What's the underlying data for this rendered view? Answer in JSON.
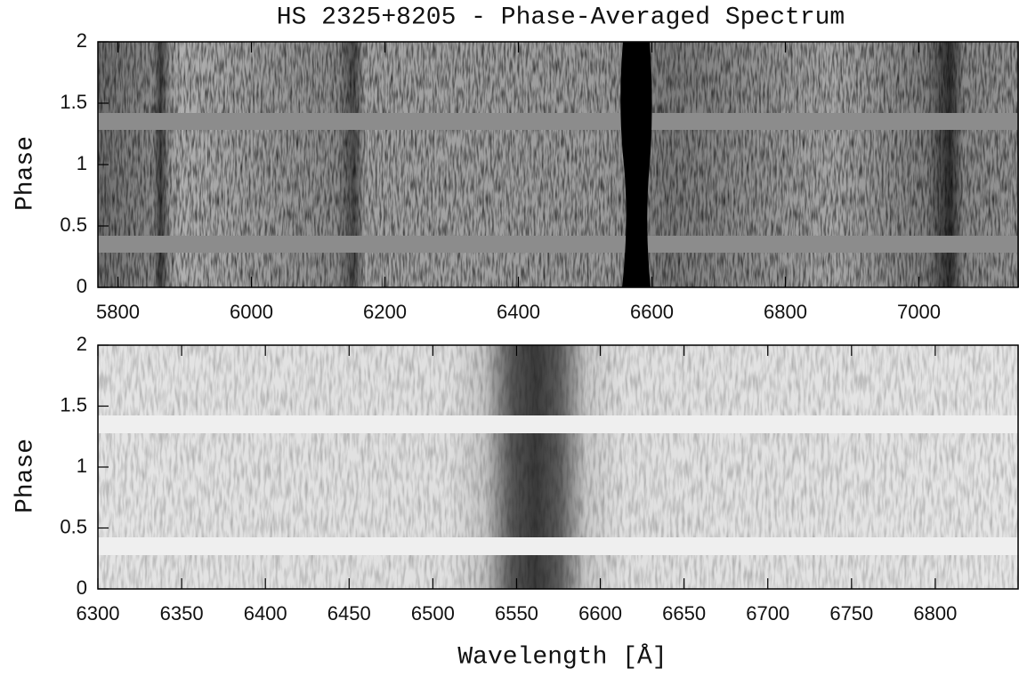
{
  "chart_data": [
    {
      "type": "image",
      "title": "HS 2325+8205 - Phase-Averaged Spectrum",
      "ylabel": "Phase",
      "xlim": [
        5770,
        7150
      ],
      "ylim": [
        0,
        2
      ],
      "xticks": [
        5800,
        6000,
        6200,
        6400,
        6600,
        6800,
        7000
      ],
      "yticks": [
        0,
        0.5,
        1,
        1.5,
        2
      ]
    },
    {
      "type": "image",
      "ylabel": "Phase",
      "xlabel": "Wavelength [Å]",
      "xlim": [
        6300,
        6850
      ],
      "ylim": [
        0,
        2
      ],
      "xticks": [
        6300,
        6350,
        6400,
        6450,
        6500,
        6550,
        6600,
        6650,
        6700,
        6750,
        6800
      ],
      "yticks": [
        0,
        0.5,
        1,
        1.5,
        2
      ]
    }
  ]
}
